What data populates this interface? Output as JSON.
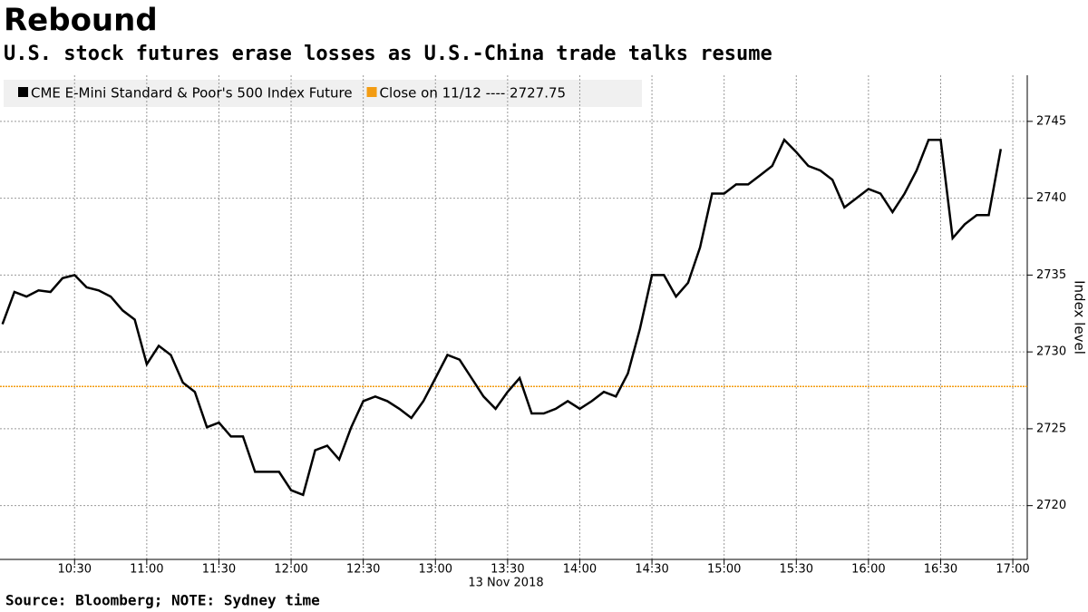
{
  "chart_data": {
    "type": "line",
    "title": "Rebound",
    "subtitle": "U.S. stock futures erase losses as U.S.-China trade talks resume",
    "source": "Source: Bloomberg; NOTE: Sydney time",
    "x_label": "13 Nov 2018",
    "y_label": "Index level",
    "x": [
      "10:00",
      "10:05",
      "10:10",
      "10:15",
      "10:20",
      "10:25",
      "10:30",
      "10:35",
      "10:40",
      "10:45",
      "10:50",
      "10:55",
      "11:00",
      "11:05",
      "11:10",
      "11:15",
      "11:20",
      "11:25",
      "11:30",
      "11:35",
      "11:40",
      "11:45",
      "11:50",
      "11:55",
      "12:00",
      "12:05",
      "12:10",
      "12:15",
      "12:20",
      "12:25",
      "12:30",
      "12:35",
      "12:40",
      "12:45",
      "12:50",
      "12:55",
      "13:00",
      "13:05",
      "13:10",
      "13:15",
      "13:20",
      "13:25",
      "13:30",
      "13:35",
      "13:40",
      "13:45",
      "13:50",
      "13:55",
      "14:00",
      "14:05",
      "14:10",
      "14:15",
      "14:20",
      "14:25",
      "14:30",
      "14:35",
      "14:40",
      "14:45",
      "14:50",
      "14:55",
      "15:00",
      "15:05",
      "15:10",
      "15:15",
      "15:20",
      "15:25",
      "15:30",
      "15:35",
      "15:40",
      "15:45",
      "15:50",
      "15:55",
      "16:00",
      "16:05",
      "16:10",
      "16:15",
      "16:20",
      "16:25",
      "16:30",
      "16:35",
      "16:40",
      "16:45",
      "16:50",
      "16:55"
    ],
    "series": [
      {
        "name": "CME E-Mini Standard & Poor's 500 Index Future",
        "color": "#000000",
        "values": [
          2731.8,
          2733.9,
          2733.6,
          2734.0,
          2733.9,
          2734.8,
          2735.0,
          2734.2,
          2734.0,
          2733.6,
          2732.7,
          2732.1,
          2729.2,
          2730.4,
          2729.8,
          2728.0,
          2727.4,
          2725.1,
          2725.4,
          2724.5,
          2724.5,
          2722.2,
          2722.2,
          2722.2,
          2721.0,
          2720.7,
          2723.6,
          2723.9,
          2723.0,
          2725.1,
          2726.8,
          2727.1,
          2726.8,
          2726.3,
          2725.7,
          2726.8,
          2728.3,
          2729.8,
          2729.5,
          2728.3,
          2727.1,
          2726.3,
          2727.4,
          2728.3,
          2726.0,
          2726.0,
          2726.3,
          2726.8,
          2726.3,
          2726.8,
          2727.4,
          2727.1,
          2728.6,
          2731.5,
          2735.0,
          2735.0,
          2733.6,
          2734.5,
          2736.8,
          2740.3,
          2740.3,
          2740.9,
          2740.9,
          2741.5,
          2742.1,
          2743.8,
          2743.0,
          2742.1,
          2741.8,
          2741.2,
          2739.4,
          2740.0,
          2740.6,
          2740.3,
          2739.1,
          2740.3,
          2741.8,
          2743.8,
          2743.8,
          2737.4,
          2738.3,
          2738.9,
          2738.9,
          2743.2
        ]
      }
    ],
    "reference_line": {
      "name": "Close on 11/12 ---- 2727.75",
      "value": 2727.75,
      "color": "#f39c12"
    },
    "xlim": [
      "09:59",
      "17:06"
    ],
    "xticks": [
      "10:30",
      "11:00",
      "11:30",
      "12:00",
      "12:30",
      "13:00",
      "13:30",
      "14:00",
      "14:30",
      "15:00",
      "15:30",
      "16:00",
      "16:30",
      "17:00"
    ],
    "ylim": [
      2716.5,
      2748
    ],
    "yticks": [
      2720,
      2725,
      2730,
      2735,
      2740,
      2745
    ],
    "grid": true
  }
}
